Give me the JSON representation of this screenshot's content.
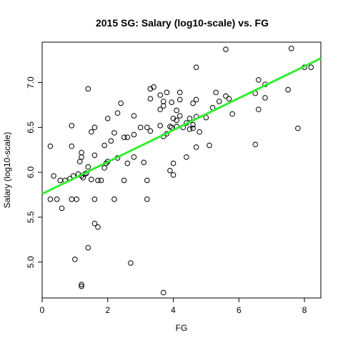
{
  "chart_data": {
    "type": "scatter",
    "title": "2015 SG: Salary (log10-scale) vs. FG",
    "xlabel": "FG",
    "ylabel": "Salary (log10-scale)",
    "xlim": [
      0,
      8.5
    ],
    "ylim": [
      4.6,
      7.45
    ],
    "xticks": [
      0,
      2,
      4,
      6,
      8
    ],
    "yticks": [
      5.0,
      5.5,
      6.0,
      6.5,
      7.0
    ],
    "xtick_labels": [
      "0",
      "2",
      "4",
      "6",
      "8"
    ],
    "ytick_labels": [
      "5.0",
      "5.5",
      "6.0",
      "6.5",
      "7.0"
    ],
    "grid": false,
    "point_color": "#000000",
    "line_color": "#33ee33",
    "fit_line": {
      "x": [
        0,
        8.5
      ],
      "y": [
        5.76,
        7.27
      ]
    },
    "points": [
      [
        0.25,
        6.29
      ],
      [
        0.25,
        5.7
      ],
      [
        0.35,
        5.96
      ],
      [
        0.45,
        5.7
      ],
      [
        0.55,
        5.91
      ],
      [
        0.6,
        5.6
      ],
      [
        0.7,
        5.91
      ],
      [
        0.85,
        5.93
      ],
      [
        0.9,
        6.29
      ],
      [
        0.9,
        6.52
      ],
      [
        0.9,
        5.7
      ],
      [
        0.95,
        5.96
      ],
      [
        1.0,
        5.03
      ],
      [
        1.05,
        5.7
      ],
      [
        1.1,
        5.98
      ],
      [
        1.15,
        6.12
      ],
      [
        1.2,
        6.17
      ],
      [
        1.2,
        6.22
      ],
      [
        1.2,
        5.96
      ],
      [
        1.2,
        4.75
      ],
      [
        1.2,
        4.73
      ],
      [
        1.25,
        5.94
      ],
      [
        1.3,
        5.98
      ],
      [
        1.35,
        5.99
      ],
      [
        1.4,
        6.06
      ],
      [
        1.4,
        6.93
      ],
      [
        1.4,
        5.16
      ],
      [
        1.5,
        6.45
      ],
      [
        1.5,
        5.92
      ],
      [
        1.6,
        6.5
      ],
      [
        1.6,
        6.19
      ],
      [
        1.6,
        5.7
      ],
      [
        1.6,
        5.43
      ],
      [
        1.7,
        5.91
      ],
      [
        1.7,
        5.39
      ],
      [
        1.8,
        5.91
      ],
      [
        1.9,
        6.05
      ],
      [
        1.9,
        6.3
      ],
      [
        1.95,
        6.1
      ],
      [
        2.0,
        6.6
      ],
      [
        2.0,
        6.12
      ],
      [
        2.1,
        6.35
      ],
      [
        2.2,
        6.44
      ],
      [
        2.2,
        5.7
      ],
      [
        2.3,
        6.16
      ],
      [
        2.3,
        6.66
      ],
      [
        2.4,
        6.77
      ],
      [
        2.5,
        6.39
      ],
      [
        2.5,
        5.91
      ],
      [
        2.6,
        6.39
      ],
      [
        2.6,
        6.1
      ],
      [
        2.7,
        4.99
      ],
      [
        2.8,
        6.63
      ],
      [
        2.8,
        6.42
      ],
      [
        2.8,
        6.17
      ],
      [
        3.0,
        6.5
      ],
      [
        3.1,
        6.11
      ],
      [
        3.2,
        6.5
      ],
      [
        3.2,
        5.91
      ],
      [
        3.2,
        5.7
      ],
      [
        3.3,
        6.46
      ],
      [
        3.3,
        6.82
      ],
      [
        3.3,
        6.93
      ],
      [
        3.4,
        6.95
      ],
      [
        3.6,
        6.86
      ],
      [
        3.6,
        6.7
      ],
      [
        3.6,
        6.52
      ],
      [
        3.7,
        6.4
      ],
      [
        3.7,
        6.79
      ],
      [
        3.7,
        6.74
      ],
      [
        3.7,
        4.66
      ],
      [
        3.8,
        6.89
      ],
      [
        3.8,
        6.43
      ],
      [
        3.9,
        6.51
      ],
      [
        3.9,
        6.02
      ],
      [
        3.95,
        6.78
      ],
      [
        3.95,
        6.5
      ],
      [
        4.0,
        6.1
      ],
      [
        4.0,
        6.6
      ],
      [
        4.0,
        5.97
      ],
      [
        4.1,
        6.69
      ],
      [
        4.1,
        6.58
      ],
      [
        4.1,
        6.51
      ],
      [
        4.2,
        6.81
      ],
      [
        4.2,
        6.63
      ],
      [
        4.2,
        6.89
      ],
      [
        4.3,
        6.5
      ],
      [
        4.4,
        6.55
      ],
      [
        4.4,
        6.17
      ],
      [
        4.5,
        6.6
      ],
      [
        4.5,
        6.48
      ],
      [
        4.6,
        6.53
      ],
      [
        4.6,
        6.49
      ],
      [
        4.6,
        6.77
      ],
      [
        4.7,
        6.81
      ],
      [
        4.7,
        6.62
      ],
      [
        4.7,
        6.28
      ],
      [
        4.7,
        7.17
      ],
      [
        4.8,
        6.45
      ],
      [
        5.0,
        6.61
      ],
      [
        5.1,
        6.3
      ],
      [
        5.2,
        6.72
      ],
      [
        5.3,
        6.89
      ],
      [
        5.4,
        6.79
      ],
      [
        5.6,
        7.37
      ],
      [
        5.6,
        6.85
      ],
      [
        5.7,
        6.82
      ],
      [
        5.8,
        6.65
      ],
      [
        6.5,
        6.88
      ],
      [
        6.5,
        6.31
      ],
      [
        6.6,
        7.03
      ],
      [
        6.6,
        6.7
      ],
      [
        6.8,
        6.98
      ],
      [
        6.8,
        6.83
      ],
      [
        7.5,
        6.92
      ],
      [
        7.6,
        7.38
      ],
      [
        7.8,
        6.49
      ],
      [
        8.0,
        7.17
      ],
      [
        8.2,
        7.17
      ]
    ]
  }
}
